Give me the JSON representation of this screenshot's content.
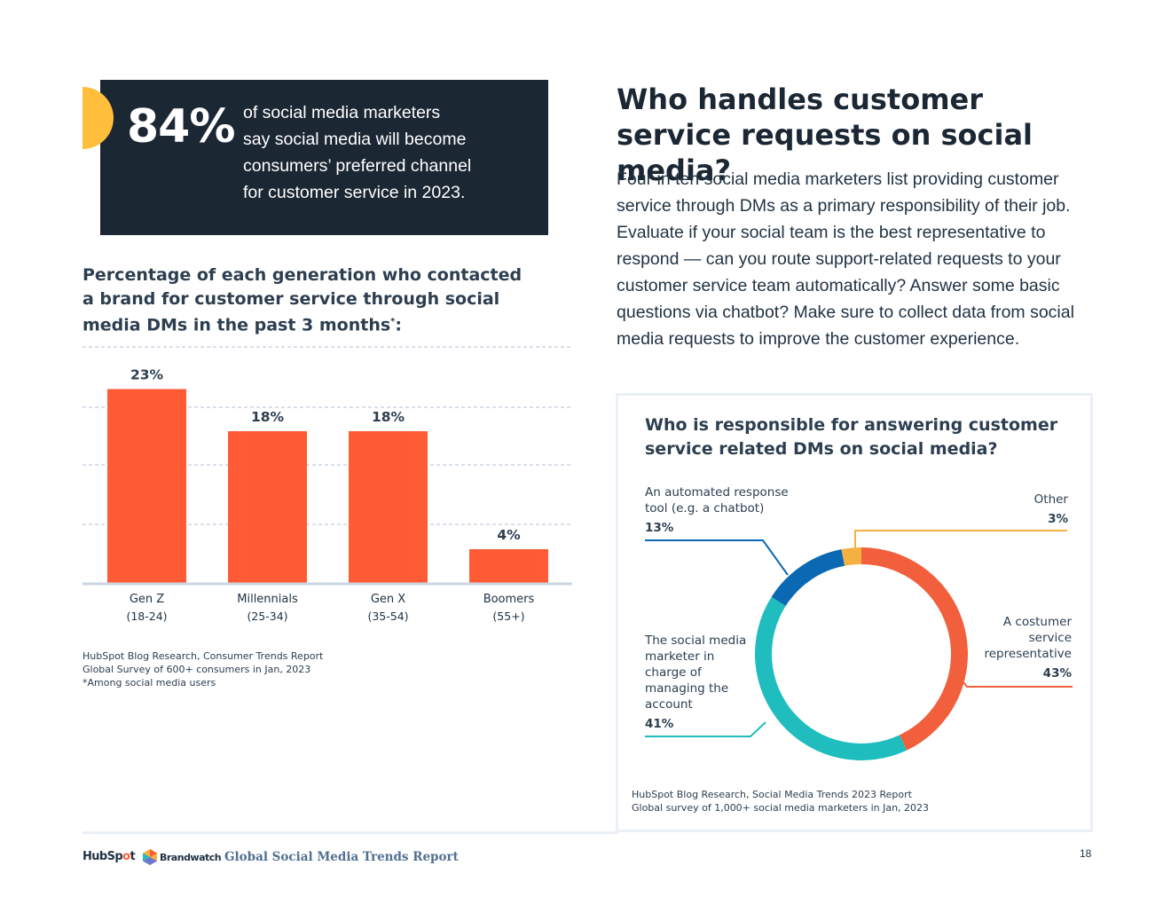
{
  "stat": {
    "number": "84%",
    "lines": [
      "of social media marketers",
      "say social media will become",
      "consumers’ preferred channel",
      "for customer service in 2023."
    ]
  },
  "bar_section": {
    "title": "Percentage of each generation who contacted a brand for customer service through social media DMs in the past 3 months",
    "title_mark": "*",
    "title_end": ":",
    "source_lines": [
      "HubSpot Blog Research, Consumer Trends Report",
      "Global Survey of 600+ consumers in Jan, 2023",
      "*Among social media users"
    ]
  },
  "right": {
    "heading": "Who handles customer service requests on social media?",
    "body": "Four in ten social media marketers list providing customer service through DMs as a primary responsibility of their job. Evaluate if your social team is the best representative to respond — can you route support-related requests to your customer service team automatically? Answer some basic questions via chatbot? Make sure to collect data from social media requests to improve the customer experience.",
    "donut_title": "Who is responsible for answering customer service related DMs on social media?",
    "donut_source_lines": [
      "HubSpot Blog Research, Social Media Trends 2023 Report",
      "Global survey of 1,000+ social media marketers in Jan, 2023"
    ]
  },
  "chart_data": [
    {
      "type": "bar",
      "title": "Percentage of each generation who contacted a brand for customer service through social media DMs in the past 3 months*:",
      "categories": [
        "Gen Z",
        "Millennials",
        "Gen X",
        "Boomers"
      ],
      "category_sublabels": [
        "(18-24)",
        "(25-34)",
        "(35-54)",
        "(55+)"
      ],
      "values": [
        23,
        18,
        18,
        4
      ],
      "value_labels": [
        "23%",
        "18%",
        "18%",
        "4%"
      ],
      "ylim": [
        0,
        28
      ],
      "grid": true,
      "color": "#ff5c35"
    },
    {
      "type": "pie",
      "title": "Who is responsible for answering customer service related DMs on social media?",
      "slices": [
        {
          "label": "A costumer service representative",
          "value": 43,
          "pct_label": "43%",
          "color": "#f25f3c"
        },
        {
          "label": "The social media marketer in charge of managing the account",
          "value": 41,
          "pct_label": "41%",
          "color": "#1fbdbd"
        },
        {
          "label": "An automated response tool (e.g. a chatbot)",
          "value": 13,
          "pct_label": "13%",
          "color": "#0b68b3"
        },
        {
          "label": "Other",
          "value": 3,
          "pct_label": "3%",
          "color": "#f5b042"
        }
      ]
    }
  ],
  "footer": {
    "hubspot_logo": [
      "HubSp",
      "o",
      "t"
    ],
    "brandwatch_logo": "Brandwatch",
    "report_title": "Global Social Media Trends Report",
    "page_number": "18"
  },
  "colors": {
    "stat_bg": "#1c2734",
    "accent_yellow": "#ffbe3b",
    "bar_orange": "#ff5c35"
  }
}
